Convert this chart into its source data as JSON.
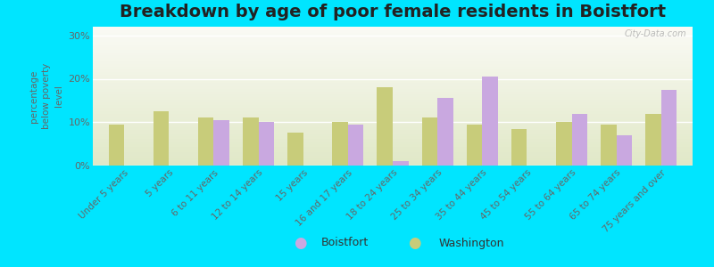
{
  "title": "Breakdown by age of poor female residents in Boistfort",
  "ylabel": "percentage\nbelow poverty\nlevel",
  "categories": [
    "Under 5 years",
    "5 years",
    "6 to 11 years",
    "12 to 14 years",
    "15 years",
    "16 and 17 years",
    "18 to 24 years",
    "25 to 34 years",
    "35 to 44 years",
    "45 to 54 years",
    "55 to 64 years",
    "65 to 74 years",
    "75 years and over"
  ],
  "boistfort": [
    null,
    null,
    10.5,
    10.0,
    null,
    9.5,
    1.0,
    15.5,
    20.5,
    null,
    12.0,
    7.0,
    17.5
  ],
  "washington": [
    9.5,
    12.5,
    11.0,
    11.0,
    7.5,
    10.0,
    18.0,
    11.0,
    9.5,
    8.5,
    10.0,
    9.5,
    12.0
  ],
  "boistfort_color": "#c9a8e0",
  "washington_color": "#c8cc7a",
  "outer_bg": "#00e5ff",
  "ylim": [
    0,
    32
  ],
  "yticks": [
    0,
    10,
    20,
    30
  ],
  "ytick_labels": [
    "0%",
    "10%",
    "20%",
    "30%"
  ],
  "title_fontsize": 14,
  "label_fontsize": 7.5,
  "watermark": "City-Data.com",
  "bar_width": 0.35
}
